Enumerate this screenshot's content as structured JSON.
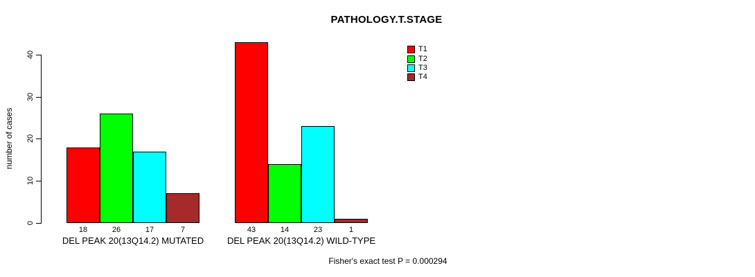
{
  "chart_data": {
    "type": "bar",
    "title": "PATHOLOGY.T.STAGE",
    "ylabel": "number of cases",
    "xlabel": "",
    "ylim": [
      0,
      40
    ],
    "yticks": [
      0,
      10,
      20,
      30,
      40
    ],
    "grid": false,
    "series_names": [
      "T1",
      "T2",
      "T3",
      "T4"
    ],
    "series_colors": [
      "#FF0000",
      "#00FF00",
      "#00FFFF",
      "#A52A2A"
    ],
    "categories": [
      "DEL PEAK 20(13Q14.2) MUTATED",
      "DEL PEAK 20(13Q14.2) WILD-TYPE"
    ],
    "groups": [
      {
        "label": "DEL PEAK 20(13Q14.2) MUTATED",
        "values": [
          18,
          26,
          17,
          7
        ]
      },
      {
        "label": "DEL PEAK 20(13Q14.2) WILD-TYPE",
        "values": [
          43,
          14,
          23,
          1
        ]
      }
    ],
    "legend": {
      "position": "top-right",
      "entries": [
        "T1",
        "T2",
        "T3",
        "T4"
      ]
    },
    "annotation": "Fisher's exact test P = 0.000294"
  }
}
